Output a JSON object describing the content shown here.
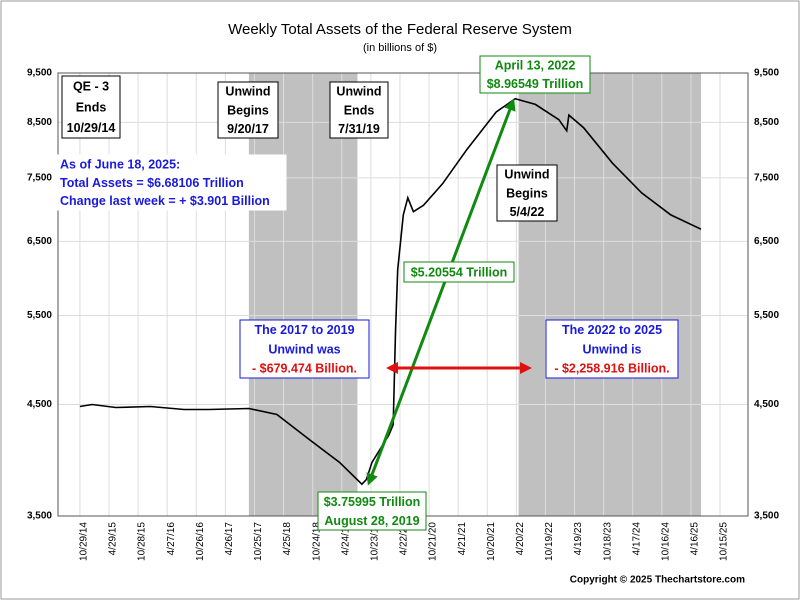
{
  "chart_data": {
    "type": "line",
    "title": "Weekly Total Assets of the Federal Reserve System",
    "subtitle": "(in billions of $)",
    "log_scale": true,
    "ylim": [
      3500,
      9500
    ],
    "yticks": [
      {
        "value": 3500,
        "label": "3,500"
      },
      {
        "value": 4500,
        "label": "4,500"
      },
      {
        "value": 5500,
        "label": "5,500"
      },
      {
        "value": 6500,
        "label": "6,500"
      },
      {
        "value": 7500,
        "label": "7,500"
      },
      {
        "value": 8500,
        "label": "8,500"
      },
      {
        "value": 9500,
        "label": "9,500"
      }
    ],
    "xlim": [
      "2014-06-14",
      "2026-04-08"
    ],
    "xticks": [
      {
        "value": "2014-10-29",
        "label": "10/29/14"
      },
      {
        "value": "2015-04-29",
        "label": "4/29/15"
      },
      {
        "value": "2015-10-28",
        "label": "10/28/15"
      },
      {
        "value": "2016-04-27",
        "label": "4/27/16"
      },
      {
        "value": "2016-10-26",
        "label": "10/26/16"
      },
      {
        "value": "2017-04-26",
        "label": "4/26/17"
      },
      {
        "value": "2017-10-25",
        "label": "10/25/17"
      },
      {
        "value": "2018-04-25",
        "label": "4/25/18"
      },
      {
        "value": "2018-10-24",
        "label": "10/24/18"
      },
      {
        "value": "2019-04-24",
        "label": "4/24/19"
      },
      {
        "value": "2019-10-23",
        "label": "10/23/19"
      },
      {
        "value": "2020-04-22",
        "label": "4/22/20"
      },
      {
        "value": "2020-10-21",
        "label": "10/21/20"
      },
      {
        "value": "2021-04-21",
        "label": "4/21/21"
      },
      {
        "value": "2021-10-20",
        "label": "10/20/21"
      },
      {
        "value": "2022-04-20",
        "label": "4/20/22"
      },
      {
        "value": "2022-10-19",
        "label": "10/19/22"
      },
      {
        "value": "2023-04-19",
        "label": "4/19/23"
      },
      {
        "value": "2023-10-18",
        "label": "10/18/23"
      },
      {
        "value": "2024-04-17",
        "label": "4/17/24"
      },
      {
        "value": "2024-10-16",
        "label": "10/16/24"
      },
      {
        "value": "2025-04-16",
        "label": "4/16/25"
      },
      {
        "value": "2025-10-15",
        "label": "10/15/25"
      }
    ],
    "grid": true,
    "shaded_spans": [
      [
        "2017-09-20",
        "2019-07-31"
      ],
      [
        "2022-05-04",
        "2025-06-18"
      ]
    ],
    "shade_color": "#c0c0c0",
    "series": [
      {
        "name": "Total Assets",
        "color": "#000000",
        "x": [
          "2014-10-29",
          "2015-01-14",
          "2015-06-10",
          "2016-01-13",
          "2016-08-10",
          "2017-01-11",
          "2017-09-20",
          "2018-03-14",
          "2018-10-10",
          "2019-04-10",
          "2019-08-28",
          "2019-09-25",
          "2019-10-30",
          "2020-02-12",
          "2020-03-11",
          "2020-03-25",
          "2020-04-08",
          "2020-05-13",
          "2020-06-10",
          "2020-07-15",
          "2020-09-16",
          "2021-01-13",
          "2021-06-16",
          "2021-12-15",
          "2022-04-13",
          "2022-08-17",
          "2023-01-11",
          "2023-03-01",
          "2023-03-15",
          "2023-06-14",
          "2023-12-13",
          "2024-06-12",
          "2024-12-11",
          "2025-06-18"
        ],
        "values": [
          4480,
          4500,
          4470,
          4480,
          4450,
          4450,
          4460,
          4400,
          4150,
          3950,
          3760,
          3800,
          3950,
          4200,
          4300,
          5300,
          6100,
          6900,
          7170,
          6950,
          7050,
          7400,
          8000,
          8700,
          8965.49,
          8850,
          8550,
          8340,
          8640,
          8400,
          7750,
          7250,
          6900,
          6681.06
        ]
      }
    ],
    "annotations": [
      {
        "lines": [
          "QE - 3",
          "Ends",
          "10/29/14"
        ],
        "line_colors": [
          "#000000",
          "#000000",
          "#000000"
        ],
        "border": "#000000"
      },
      {
        "lines": [
          "Unwind",
          "Begins",
          "9/20/17"
        ],
        "line_colors": [
          "#000000",
          "#000000",
          "#000000"
        ],
        "border": "#000000"
      },
      {
        "lines": [
          "Unwind",
          "Ends",
          "7/31/19"
        ],
        "line_colors": [
          "#000000",
          "#000000",
          "#000000"
        ],
        "border": "#000000"
      },
      {
        "lines": [
          "As of June 18, 2025:",
          "Total Assets =  $6.68106 Trillion",
          "Change last week = + $3.901 Billion"
        ],
        "line_colors": [
          "#1a1adc",
          "#1a1adc",
          "#1a1adc"
        ],
        "border": "#ffffff"
      },
      {
        "lines": [
          "April 13, 2022",
          "$8.96549 Trillion"
        ],
        "line_colors": [
          "#108a10",
          "#108a10"
        ],
        "border": "#108a10"
      },
      {
        "lines": [
          "Unwind",
          "Begins",
          "5/4/22"
        ],
        "line_colors": [
          "#000000",
          "#000000",
          "#000000"
        ],
        "border": "#000000"
      },
      {
        "lines": [
          "$5.20554 Trillion"
        ],
        "line_colors": [
          "#108a10"
        ],
        "border": "#108a10"
      },
      {
        "lines": [
          "The 2017 to 2019",
          "Unwind was",
          "- $679.474 Billion."
        ],
        "line_colors": [
          "#1a1adc",
          "#1a1adc",
          "#e01010"
        ],
        "border": "#1a1adc"
      },
      {
        "lines": [
          "The 2022 to 2025",
          "Unwind is",
          "- $2,258.916 Billion."
        ],
        "line_colors": [
          "#1a1adc",
          "#1a1adc",
          "#e01010"
        ],
        "border": "#1a1adc"
      },
      {
        "lines": [
          "$3.75995 Trillion",
          "August 28, 2019"
        ],
        "line_colors": [
          "#108a10",
          "#108a10"
        ],
        "border": "#108a10"
      }
    ],
    "copyright": "Copyright © 2025 Thechartstore.com"
  }
}
